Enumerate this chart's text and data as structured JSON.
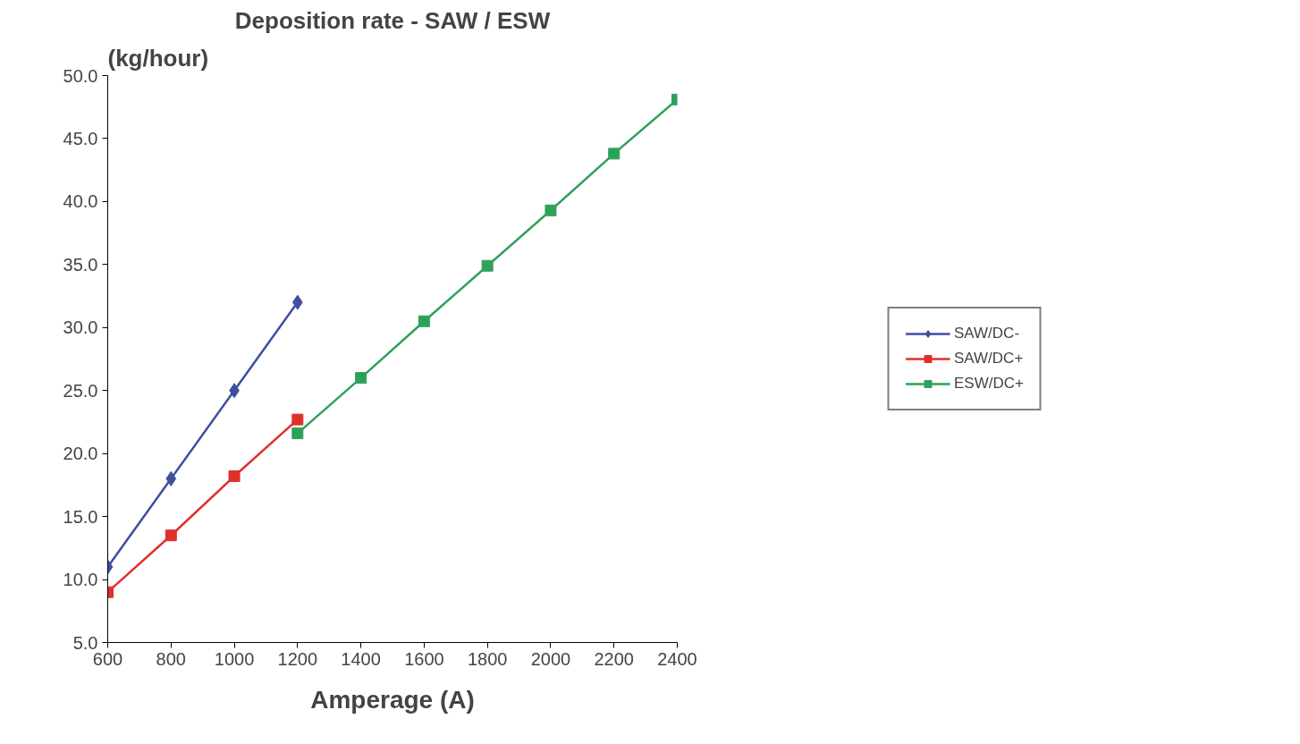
{
  "chart_data": {
    "type": "line",
    "title": "Deposition rate - SAW / ESW",
    "xlabel": "Amperage (A)",
    "ylabel": "(kg/hour)",
    "xlim": [
      600,
      2400
    ],
    "xticks": [
      600,
      800,
      1000,
      1200,
      1400,
      1600,
      1800,
      2000,
      2200,
      2400
    ],
    "ylim": [
      5,
      50
    ],
    "yticks": [
      {
        "value": 5,
        "label": "5.0"
      },
      {
        "value": 10,
        "label": "10.0"
      },
      {
        "value": 15,
        "label": "15.0"
      },
      {
        "value": 20,
        "label": "20.0"
      },
      {
        "value": 25,
        "label": "25.0"
      },
      {
        "value": 30,
        "label": "30.0"
      },
      {
        "value": 35,
        "label": "35.0"
      },
      {
        "value": 40,
        "label": "40.0"
      },
      {
        "value": 45,
        "label": "45.0"
      },
      {
        "value": 50,
        "label": "50.0"
      }
    ],
    "grid": false,
    "legend": "right",
    "line_style": "solid",
    "series": [
      {
        "name": "SAW/DC-",
        "color": "#3f4fa0",
        "marker": "diamond",
        "x": [
          600,
          800,
          1000,
          1200
        ],
        "values": [
          11.0,
          18.0,
          25.0,
          32.0
        ]
      },
      {
        "name": "SAW/DC+",
        "color": "#e0302a",
        "marker": "square",
        "x": [
          600,
          800,
          1000,
          1200
        ],
        "values": [
          9.0,
          13.5,
          18.2,
          22.7
        ]
      },
      {
        "name": "ESW/DC+",
        "color": "#2fa05a",
        "marker": "square",
        "x": [
          1200,
          1400,
          1600,
          1800,
          2000,
          2200,
          2400
        ],
        "values": [
          21.6,
          26.0,
          30.5,
          34.9,
          39.3,
          43.8,
          48.1
        ]
      }
    ]
  }
}
